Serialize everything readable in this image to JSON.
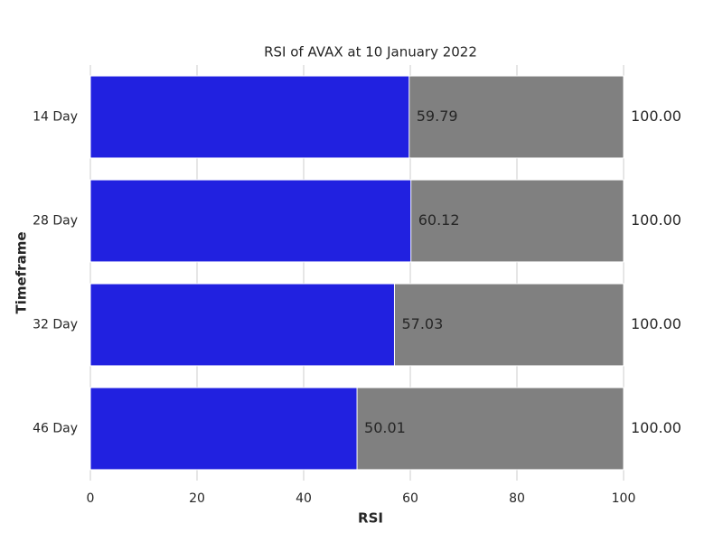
{
  "chart_data": {
    "type": "barh",
    "title": "RSI of AVAX at 10 January 2022",
    "xlabel": "RSI",
    "ylabel": "Timeframe",
    "categories": [
      "14 Day",
      "28 Day",
      "32 Day",
      "46 Day"
    ],
    "series": [
      {
        "color": "#808080",
        "values": [
          100,
          100,
          100,
          100
        ],
        "value_labels": [
          "100.00",
          "100.00",
          "100.00",
          "100.00"
        ]
      },
      {
        "color": "#2121e0",
        "values": [
          59.79,
          60.12,
          57.03,
          50.01
        ]
      }
    ],
    "xlim": [
      0,
      100
    ],
    "xticks": [
      0,
      20,
      40,
      60,
      80,
      100
    ],
    "grid": true
  }
}
